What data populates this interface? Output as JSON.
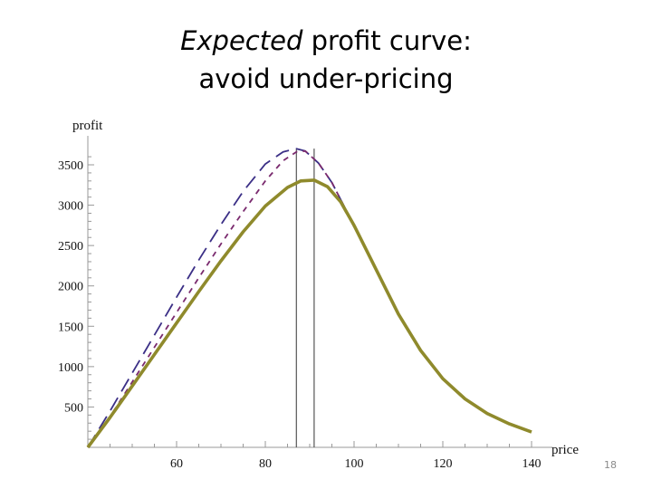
{
  "slide": {
    "title_italic": "Expected",
    "title_rest": " profit curve:",
    "title_line2": "avoid under-pricing",
    "page_number": "18"
  },
  "chart_data": {
    "type": "line",
    "xlabel": "price",
    "ylabel": "profit",
    "xlim": [
      40,
      145
    ],
    "ylim": [
      0,
      3700
    ],
    "xticks": [
      60,
      80,
      100,
      120,
      140
    ],
    "yticks": [
      500,
      1000,
      1500,
      2000,
      2500,
      3000,
      3500
    ],
    "grid": false,
    "series": [
      {
        "style": "long-dash",
        "color": "#3b2f86",
        "x": [
          40,
          45,
          50,
          55,
          60,
          65,
          70,
          75,
          80,
          84,
          87,
          89,
          92,
          95,
          98,
          100
        ],
        "y": [
          0,
          450,
          920,
          1390,
          1860,
          2320,
          2760,
          3170,
          3510,
          3660,
          3700,
          3670,
          3520,
          3280,
          2960,
          2730
        ]
      },
      {
        "style": "short-dash",
        "color": "#7a2a6e",
        "x": [
          40,
          45,
          50,
          55,
          60,
          65,
          70,
          75,
          80,
          84,
          87,
          89,
          92,
          95,
          98,
          100
        ],
        "y": [
          0,
          380,
          810,
          1240,
          1670,
          2100,
          2520,
          2920,
          3300,
          3550,
          3660,
          3670,
          3520,
          3280,
          2960,
          2730
        ]
      },
      {
        "style": "solid",
        "color": "#8f8a2c",
        "x": [
          40,
          45,
          50,
          55,
          60,
          65,
          70,
          75,
          80,
          85,
          88,
          91,
          94,
          97,
          100,
          105,
          110,
          115,
          120,
          125,
          130,
          135,
          140
        ],
        "y": [
          0,
          370,
          760,
          1150,
          1540,
          1930,
          2310,
          2670,
          2990,
          3220,
          3300,
          3310,
          3230,
          3040,
          2750,
          2200,
          1650,
          1200,
          850,
          600,
          420,
          290,
          190
        ]
      }
    ],
    "vertical_lines_x": [
      87,
      91
    ]
  }
}
